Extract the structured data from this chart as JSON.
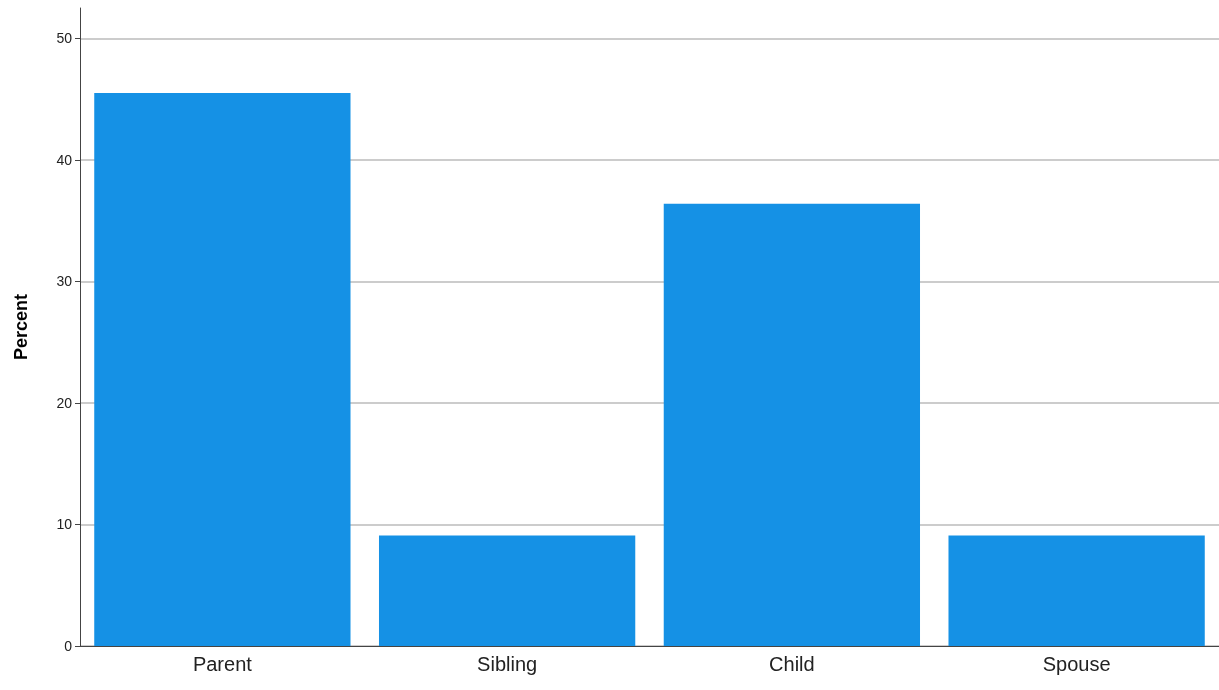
{
  "chart_data": {
    "type": "bar",
    "ylabel": "Percent",
    "categories": [
      "Parent",
      "Sibling",
      "Child",
      "Spouse"
    ],
    "values": [
      45.5,
      9.1,
      36.4,
      9.1
    ],
    "color": "#1591e5",
    "ylim": [
      0,
      52.5
    ],
    "yticks": [
      0,
      10,
      20,
      30,
      40,
      50
    ],
    "grid": "y"
  }
}
